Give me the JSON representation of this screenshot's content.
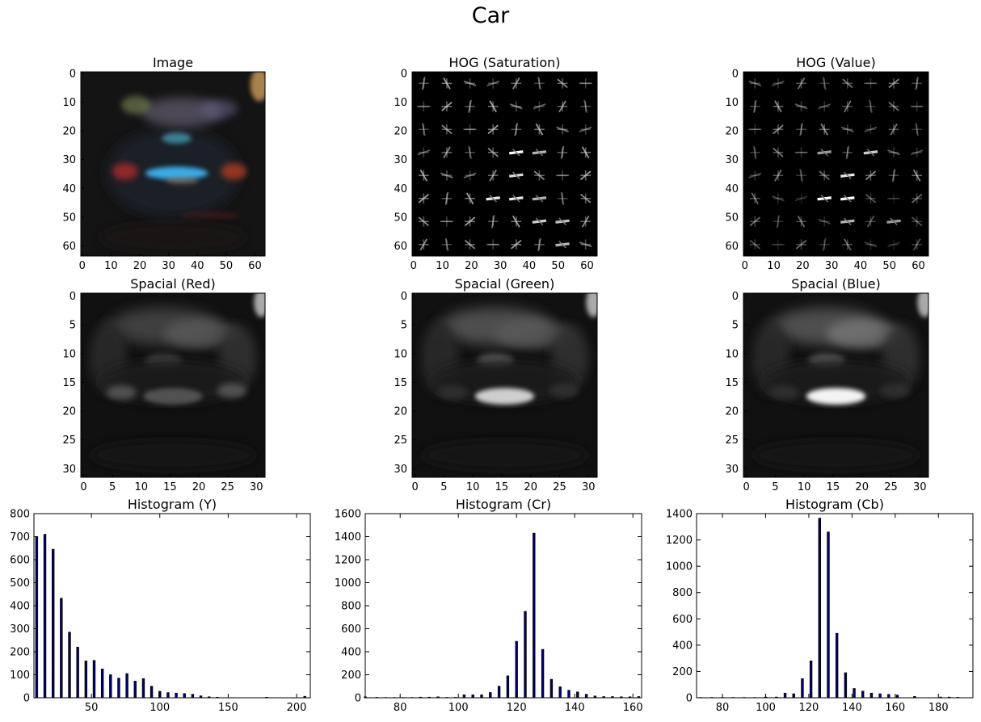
{
  "figure": {
    "suptitle": "Car"
  },
  "chart_data": [
    {
      "type": "heatmap",
      "title": "Image",
      "image": "car-rgb",
      "xlim": [
        0,
        63
      ],
      "ylim": [
        63,
        0
      ],
      "xticks": [
        "0",
        "10",
        "20",
        "30",
        "40",
        "50",
        "60"
      ],
      "yticks": [
        "0",
        "10",
        "20",
        "30",
        "40",
        "50",
        "60"
      ]
    },
    {
      "type": "heatmap",
      "title": "HOG (Saturation)",
      "image": "hog-grayscale",
      "xlim": [
        0,
        63
      ],
      "ylim": [
        63,
        0
      ],
      "xticks": [
        "0",
        "10",
        "20",
        "30",
        "40",
        "50",
        "60"
      ],
      "yticks": [
        "0",
        "10",
        "20",
        "30",
        "40",
        "50",
        "60"
      ]
    },
    {
      "type": "heatmap",
      "title": "HOG (Value)",
      "image": "hog-grayscale",
      "xlim": [
        0,
        63
      ],
      "ylim": [
        63,
        0
      ],
      "xticks": [
        "0",
        "10",
        "20",
        "30",
        "40",
        "50",
        "60"
      ],
      "yticks": [
        "0",
        "10",
        "20",
        "30",
        "40",
        "50",
        "60"
      ]
    },
    {
      "type": "heatmap",
      "title": "Spacial (Red)",
      "image": "grayscale",
      "xlim": [
        0,
        31
      ],
      "ylim": [
        31,
        0
      ],
      "xticks": [
        "0",
        "5",
        "10",
        "15",
        "20",
        "25",
        "30"
      ],
      "yticks": [
        "0",
        "5",
        "10",
        "15",
        "20",
        "25",
        "30"
      ]
    },
    {
      "type": "heatmap",
      "title": "Spacial (Green)",
      "image": "grayscale",
      "xlim": [
        0,
        31
      ],
      "ylim": [
        31,
        0
      ],
      "xticks": [
        "0",
        "5",
        "10",
        "15",
        "20",
        "25",
        "30"
      ],
      "yticks": [
        "0",
        "5",
        "10",
        "15",
        "20",
        "25",
        "30"
      ]
    },
    {
      "type": "heatmap",
      "title": "Spacial (Blue)",
      "image": "grayscale",
      "xlim": [
        0,
        31
      ],
      "ylim": [
        31,
        0
      ],
      "xticks": [
        "0",
        "5",
        "10",
        "15",
        "20",
        "25",
        "30"
      ],
      "yticks": [
        "0",
        "5",
        "10",
        "15",
        "20",
        "25",
        "30"
      ]
    },
    {
      "type": "bar",
      "title": "Histogram (Y)",
      "bar_color": "#00007f",
      "xlim": [
        8,
        210
      ],
      "ylim": [
        0,
        800
      ],
      "xticks": [
        50,
        100,
        150,
        200
      ],
      "yticks": [
        0,
        100,
        200,
        300,
        400,
        500,
        600,
        700,
        800
      ],
      "x": [
        10,
        16,
        22,
        28,
        34,
        40,
        46,
        52,
        58,
        64,
        70,
        76,
        82,
        88,
        94,
        100,
        106,
        112,
        118,
        124,
        130,
        136,
        142,
        178,
        206
      ],
      "values": [
        700,
        710,
        645,
        432,
        285,
        220,
        160,
        162,
        125,
        100,
        85,
        105,
        72,
        83,
        50,
        28,
        22,
        20,
        18,
        15,
        8,
        4,
        2,
        2,
        6
      ]
    },
    {
      "type": "bar",
      "title": "Histogram (Cr)",
      "bar_color": "#00007f",
      "xlim": [
        68,
        163
      ],
      "ylim": [
        0,
        1600
      ],
      "xticks": [
        80,
        100,
        120,
        140,
        160
      ],
      "yticks": [
        0,
        200,
        400,
        600,
        800,
        1000,
        1200,
        1400,
        1600
      ],
      "x": [
        68,
        72,
        75,
        78,
        81,
        84,
        87,
        90,
        93,
        96,
        99,
        102,
        105,
        108,
        111,
        114,
        117,
        120,
        123,
        126,
        129,
        132,
        135,
        138,
        141,
        144,
        147,
        150,
        153,
        156,
        159,
        162
      ],
      "values": [
        8,
        3,
        2,
        2,
        2,
        2,
        5,
        5,
        8,
        3,
        3,
        25,
        25,
        25,
        45,
        100,
        190,
        490,
        750,
        1430,
        420,
        160,
        95,
        65,
        50,
        30,
        15,
        10,
        10,
        8,
        8,
        10
      ]
    },
    {
      "type": "bar",
      "title": "Histogram (Cb)",
      "bar_color": "#00007f",
      "xlim": [
        68,
        196
      ],
      "ylim": [
        0,
        1400
      ],
      "xticks": [
        80,
        100,
        120,
        140,
        160,
        180
      ],
      "yticks": [
        0,
        200,
        400,
        600,
        800,
        1000,
        1200,
        1400
      ],
      "x": [
        70,
        75,
        80,
        85,
        90,
        95,
        100,
        105,
        109,
        113,
        117,
        121,
        125,
        129,
        133,
        137,
        141,
        145,
        149,
        153,
        157,
        161,
        169,
        181,
        185,
        189
      ],
      "values": [
        2,
        2,
        2,
        2,
        2,
        2,
        5,
        5,
        35,
        30,
        145,
        280,
        1365,
        1260,
        490,
        190,
        70,
        50,
        35,
        30,
        25,
        20,
        10,
        5,
        5,
        3
      ]
    }
  ]
}
